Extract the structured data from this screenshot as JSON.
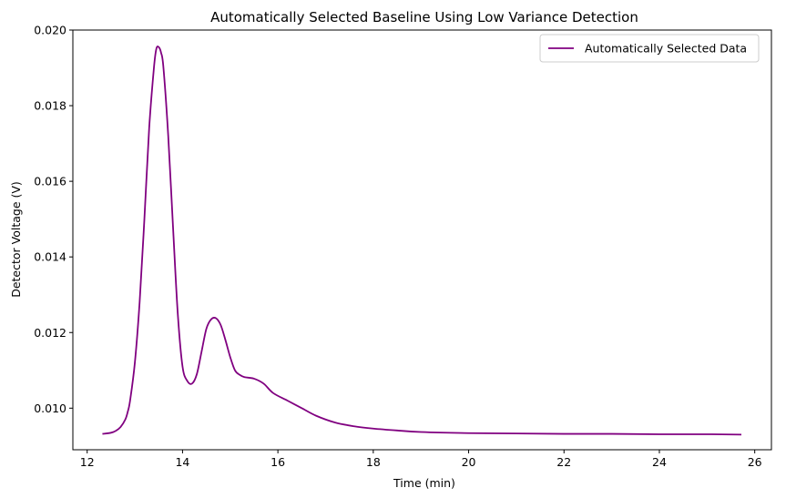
{
  "chart_data": {
    "type": "line",
    "title": "Automatically Selected Baseline Using Low Variance Detection",
    "xlabel": "Time (min)",
    "ylabel": "Detector Voltage (V)",
    "xlim": [
      11.7,
      26.35
    ],
    "ylim": [
      0.0089,
      0.02
    ],
    "xticks": [
      12,
      14,
      16,
      18,
      20,
      22,
      24,
      26
    ],
    "xtick_labels": [
      "12",
      "14",
      "16",
      "18",
      "20",
      "22",
      "24",
      "26"
    ],
    "yticks": [
      0.01,
      0.012,
      0.014,
      0.016,
      0.018,
      0.02
    ],
    "ytick_labels": [
      "0.010",
      "0.012",
      "0.014",
      "0.016",
      "0.018",
      "0.020"
    ],
    "grid": false,
    "legend_position": "top-right",
    "series": [
      {
        "name": "Automatically Selected Data",
        "color": "#800080",
        "x": [
          12.32,
          12.5,
          12.6,
          12.7,
          12.8,
          12.85,
          12.9,
          13.0,
          13.1,
          13.2,
          13.3,
          13.4,
          13.45,
          13.5,
          13.55,
          13.6,
          13.7,
          13.8,
          13.9,
          14.0,
          14.1,
          14.2,
          14.3,
          14.4,
          14.5,
          14.6,
          14.7,
          14.8,
          14.9,
          15.0,
          15.1,
          15.2,
          15.3,
          15.5,
          15.7,
          15.9,
          16.2,
          16.5,
          16.8,
          17.2,
          17.6,
          18.0,
          18.5,
          19.0,
          20.0,
          21.0,
          22.0,
          23.0,
          24.0,
          25.0,
          25.72
        ],
        "y": [
          0.00932,
          0.00935,
          0.0094,
          0.0095,
          0.0097,
          0.0099,
          0.0102,
          0.0112,
          0.0128,
          0.015,
          0.0174,
          0.019,
          0.0195,
          0.01955,
          0.0194,
          0.019,
          0.0172,
          0.0148,
          0.0125,
          0.0111,
          0.01072,
          0.01065,
          0.0109,
          0.0115,
          0.0121,
          0.01235,
          0.01238,
          0.0122,
          0.0118,
          0.01135,
          0.011,
          0.01088,
          0.01082,
          0.01078,
          0.01065,
          0.0104,
          0.0102,
          0.01,
          0.0098,
          0.00962,
          0.00952,
          0.00946,
          0.00941,
          0.00937,
          0.00934,
          0.00933,
          0.00932,
          0.00932,
          0.00931,
          0.00931,
          0.0093
        ]
      }
    ]
  }
}
